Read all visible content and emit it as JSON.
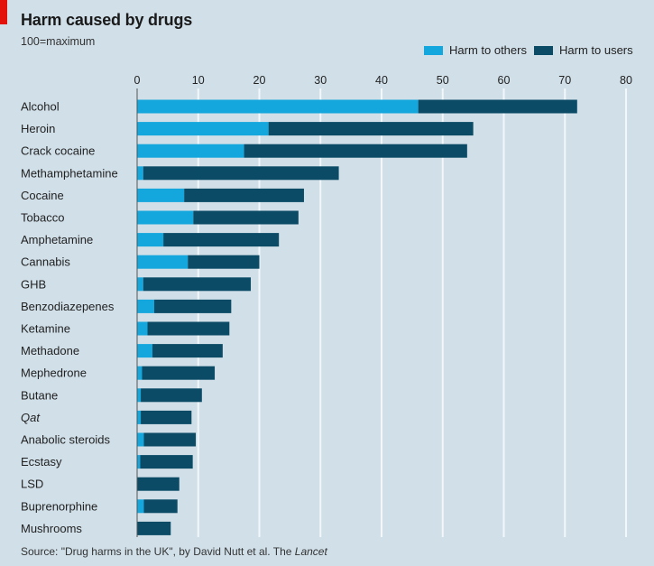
{
  "header": {
    "title": "Harm caused by drugs",
    "subtitle": "100=maximum"
  },
  "footer": {
    "source_prefix": "Source: \"Drug harms in the UK\", by David Nutt et al. The ",
    "source_italic": "Lancet"
  },
  "colors": {
    "harm_to_others": "#14a7dd",
    "harm_to_users": "#0b4b66",
    "accent": "#e3120b",
    "background": "#d0dfe8",
    "grid": "#f2f7fa"
  },
  "chart_data": {
    "type": "bar",
    "orientation": "horizontal",
    "stacked": true,
    "title": "Harm caused by drugs",
    "subtitle": "100=maximum",
    "xlabel": "",
    "ylabel": "",
    "xlim": [
      0,
      80
    ],
    "xticks": [
      0,
      10,
      20,
      30,
      40,
      50,
      60,
      70,
      80
    ],
    "grid": true,
    "legend_position": "top-right",
    "categories": [
      "Alcohol",
      "Heroin",
      "Crack cocaine",
      "Methamphetamine",
      "Cocaine",
      "Tobacco",
      "Amphetamine",
      "Cannabis",
      "GHB",
      "Benzodiazepenes",
      "Ketamine",
      "Methadone",
      "Mephedrone",
      "Butane",
      "Qat",
      "Anabolic steroids",
      "Ecstasy",
      "LSD",
      "Buprenorphine",
      "Mushrooms"
    ],
    "italic_categories": [
      "Qat"
    ],
    "series": [
      {
        "name": "Harm to others",
        "values": [
          46,
          21.5,
          17.5,
          1,
          7.7,
          9.2,
          4.3,
          8.3,
          1,
          2.8,
          1.7,
          2.5,
          0.8,
          0.6,
          0.6,
          1.1,
          0.5,
          0,
          1.1,
          0
        ]
      },
      {
        "name": "Harm to users",
        "values": [
          26,
          33.5,
          36.5,
          32,
          19.6,
          17.2,
          18.9,
          11.7,
          17.6,
          12.6,
          13.4,
          11.5,
          11.9,
          10,
          8.3,
          8.5,
          8.6,
          6.9,
          5.5,
          5.5
        ]
      }
    ],
    "totals": [
      72,
      55,
      54,
      33,
      27.3,
      26.4,
      23.2,
      20,
      18.6,
      15.4,
      15.1,
      14,
      12.7,
      10.6,
      8.9,
      9.6,
      9.1,
      6.9,
      6.6,
      5.5
    ]
  }
}
